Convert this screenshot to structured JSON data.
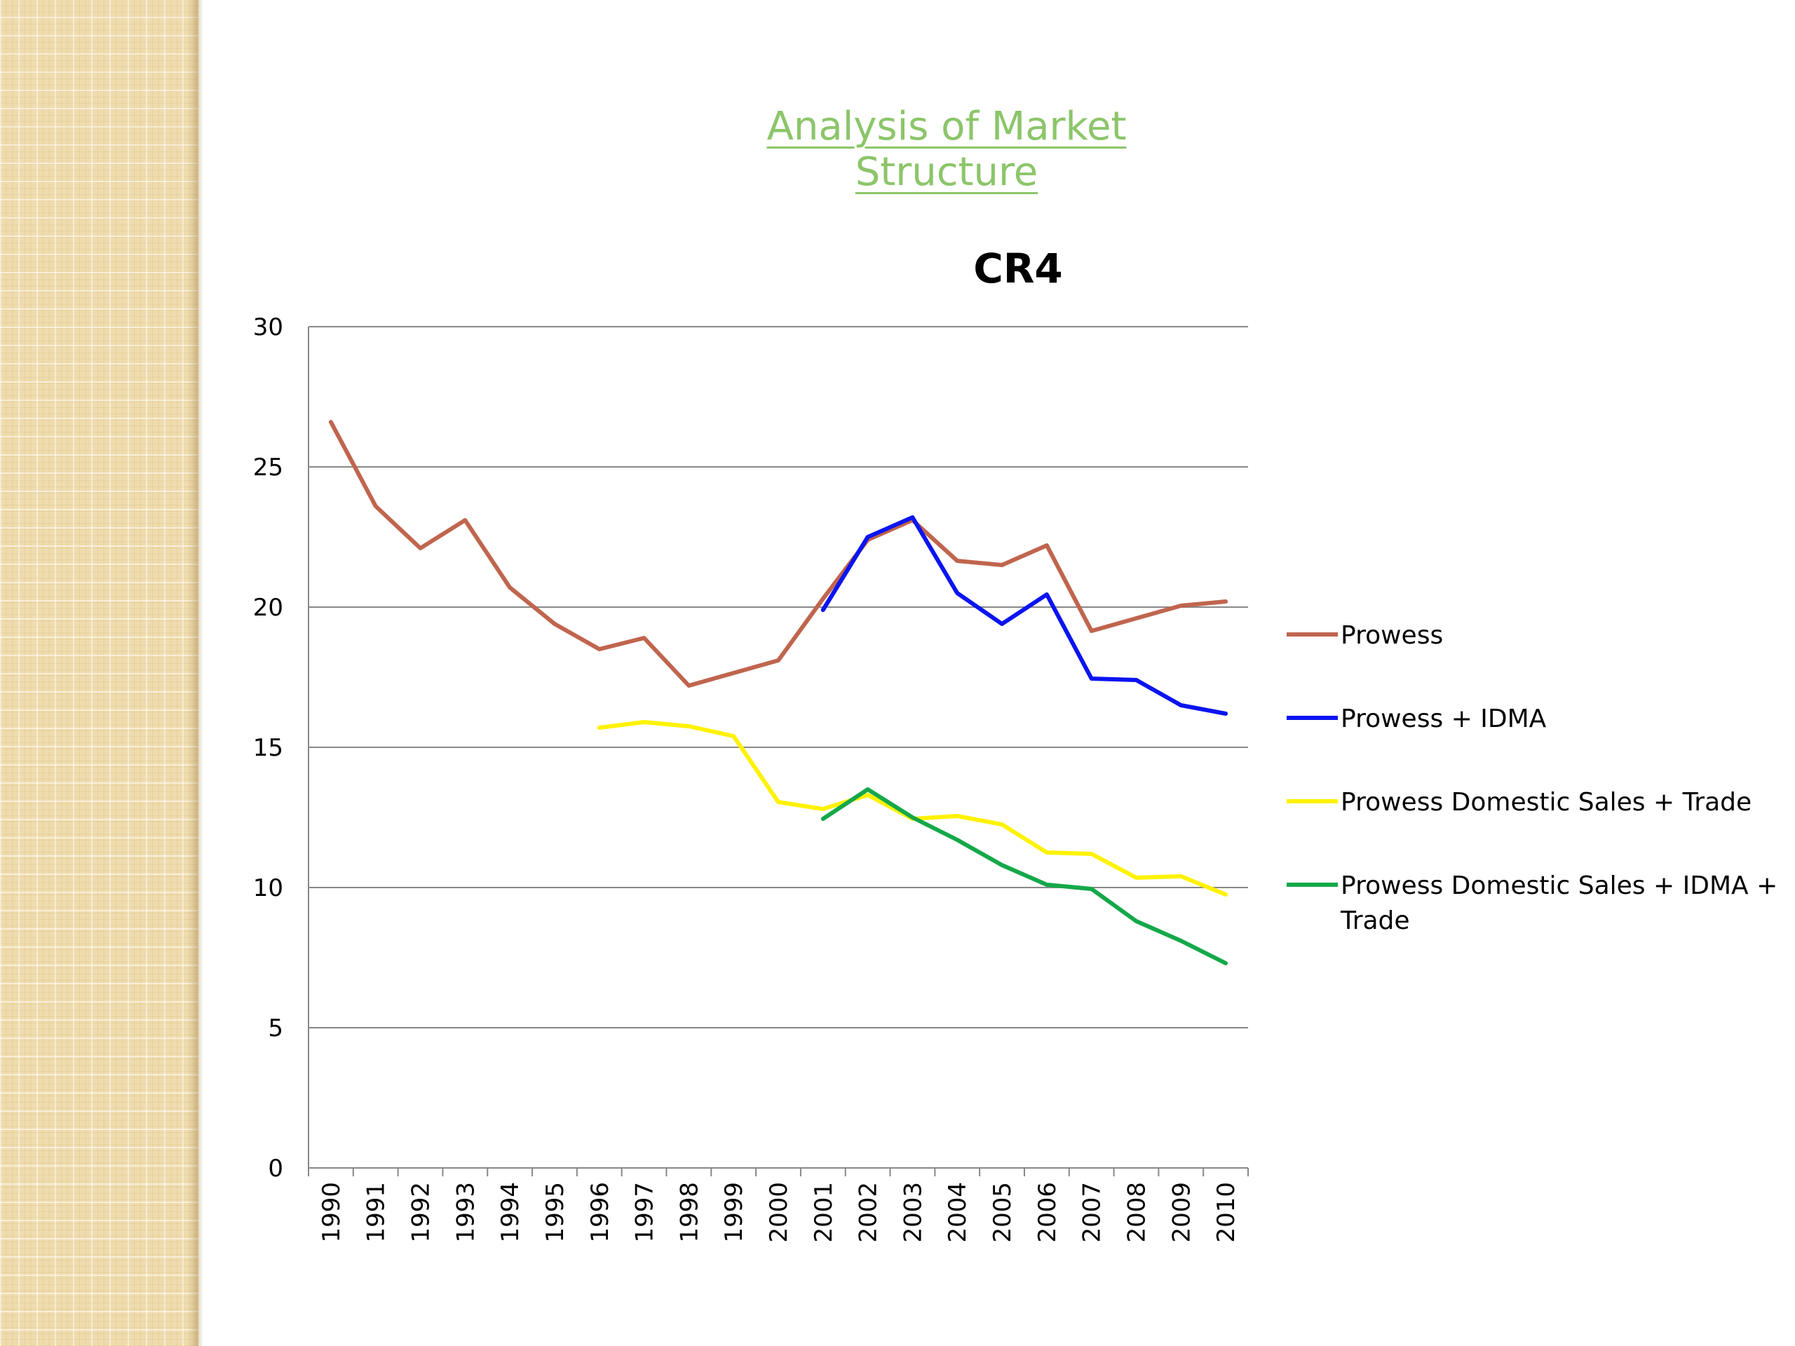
{
  "slide": {
    "title": "Analysis of Market Structure"
  },
  "colors": {
    "prowess": "#c0654e",
    "prowess_idma": "#0a14f0",
    "prowess_dst": "#fff200",
    "prowess_dsit": "#14a84a",
    "grid": "#888888",
    "title_green": "#8cc56a"
  },
  "chart_data": {
    "type": "line",
    "title": "CR4",
    "xlabel": "",
    "ylabel": "",
    "ylim": [
      0,
      30
    ],
    "yticks": [
      0,
      5,
      10,
      15,
      20,
      25,
      30
    ],
    "grid": true,
    "legend_position": "right",
    "categories": [
      "1990",
      "1991",
      "1992",
      "1993",
      "1994",
      "1995",
      "1996",
      "1997",
      "1998",
      "1999",
      "2000",
      "2001",
      "2002",
      "2003",
      "2004",
      "2005",
      "2006",
      "2007",
      "2008",
      "2009",
      "2010"
    ],
    "series": [
      {
        "name": "Prowess",
        "color": "#c0654e",
        "values": [
          26.6,
          23.6,
          22.1,
          23.1,
          20.7,
          19.4,
          18.5,
          18.9,
          17.2,
          17.65,
          18.1,
          20.3,
          22.4,
          23.1,
          21.65,
          21.5,
          22.2,
          19.15,
          19.6,
          20.05,
          20.2
        ]
      },
      {
        "name": "Prowess + IDMA",
        "color": "#0a14f0",
        "values": [
          null,
          null,
          null,
          null,
          null,
          null,
          null,
          null,
          null,
          null,
          null,
          19.9,
          22.5,
          23.2,
          20.5,
          19.4,
          20.45,
          17.45,
          17.4,
          16.5,
          16.2
        ]
      },
      {
        "name": "Prowess Domestic Sales + Trade",
        "color": "#fff200",
        "values": [
          null,
          null,
          null,
          null,
          null,
          null,
          15.7,
          15.9,
          15.75,
          15.4,
          13.05,
          12.8,
          13.3,
          12.45,
          12.55,
          12.25,
          11.25,
          11.2,
          10.35,
          10.4,
          9.75
        ]
      },
      {
        "name": "Prowess Domestic Sales + IDMA + Trade",
        "color": "#14a84a",
        "values": [
          null,
          null,
          null,
          null,
          null,
          null,
          null,
          null,
          null,
          null,
          null,
          12.45,
          13.5,
          12.5,
          11.7,
          10.8,
          10.1,
          9.95,
          8.8,
          8.1,
          7.3
        ]
      }
    ]
  }
}
